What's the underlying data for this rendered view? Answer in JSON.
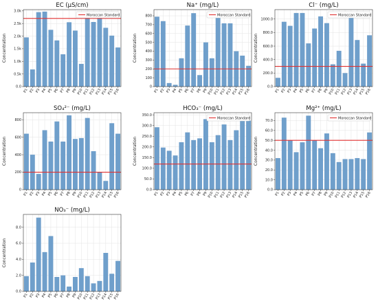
{
  "figure": {
    "bar_color": "#6f9fcb",
    "standard_color": "#e03030",
    "legend_label": "Moroccan Standard",
    "ylabel": "Concentration"
  },
  "chart_data": [
    {
      "type": "bar",
      "title": "EC (µS/cm)",
      "ylabel": "Concentration",
      "categories": [
        "P1",
        "P2",
        "P3",
        "P4",
        "P5",
        "P6",
        "P7",
        "P8",
        "P9",
        "P10",
        "P11",
        "P12",
        "P13",
        "P14",
        "P15",
        "P16"
      ],
      "values": [
        1950,
        680,
        2950,
        2970,
        2250,
        1830,
        1280,
        2550,
        2220,
        900,
        2780,
        2560,
        2800,
        2330,
        2020,
        1550
      ],
      "standard": 2700,
      "ylim": [
        0,
        3050
      ],
      "yticks": [
        0,
        500,
        1000,
        1500,
        2000,
        2500,
        3000
      ],
      "yticklabels": [
        "0.0",
        "0.5k",
        "1.0k",
        "1.5k",
        "2.0k",
        "2.5k",
        "3.0k"
      ],
      "grid": true,
      "legend": "top-right"
    },
    {
      "type": "bar",
      "title": "Na⁺ (mg/L)",
      "ylabel": "Concentration",
      "categories": [
        "P1",
        "P2",
        "P3",
        "P4",
        "P5",
        "P6",
        "P7",
        "P8",
        "P9",
        "P10",
        "P11",
        "P12",
        "P13",
        "P14",
        "P15",
        "P16"
      ],
      "values": [
        790,
        740,
        40,
        20,
        320,
        690,
        830,
        130,
        500,
        320,
        790,
        715,
        715,
        400,
        350,
        235
      ],
      "standard": 200,
      "ylim": [
        0,
        870
      ],
      "yticks": [
        0,
        100,
        200,
        300,
        400,
        500,
        600,
        700,
        800
      ],
      "yticklabels": [
        "0",
        "100",
        "200",
        "300",
        "400",
        "500",
        "600",
        "700",
        "800"
      ],
      "grid": true,
      "legend": "top-right"
    },
    {
      "type": "bar",
      "title": "Cl⁻ (mg/L)",
      "ylabel": "Concentration",
      "categories": [
        "P1",
        "P2",
        "P3",
        "P4",
        "P5",
        "P6",
        "P7",
        "P8",
        "P9",
        "P10",
        "P11",
        "P12",
        "P13",
        "P14",
        "P15",
        "P16"
      ],
      "values": [
        130,
        960,
        900,
        1090,
        1090,
        640,
        860,
        1040,
        940,
        330,
        530,
        200,
        1040,
        690,
        340,
        760
      ],
      "standard": 300,
      "ylim": [
        0,
        1140
      ],
      "yticks": [
        0,
        200,
        400,
        600,
        800,
        1000
      ],
      "yticklabels": [
        "0.0",
        "200.0",
        "400.0",
        "600.0",
        "800.0",
        "1000.0"
      ],
      "grid": true,
      "legend": "top-right"
    },
    {
      "type": "bar",
      "title": "SO₄²⁻ (mg/L)",
      "ylabel": "Concentration",
      "categories": [
        "P1",
        "P2",
        "P3",
        "P4",
        "P5",
        "P6",
        "P7",
        "P8",
        "P9",
        "P10",
        "P11",
        "P12",
        "P13",
        "P14",
        "P15",
        "P16"
      ],
      "values": [
        640,
        400,
        180,
        680,
        550,
        780,
        550,
        850,
        580,
        590,
        820,
        440,
        200,
        100,
        760,
        640
      ],
      "standard": 200,
      "ylim": [
        0,
        880
      ],
      "yticks": [
        0,
        200,
        400,
        600,
        800
      ],
      "yticklabels": [
        "0",
        "200",
        "400",
        "600",
        "800"
      ],
      "grid": true,
      "legend": "none"
    },
    {
      "type": "bar",
      "title": "HCO₃⁻ (mg/L)",
      "ylabel": "Concentration",
      "categories": [
        "P1",
        "P2",
        "P3",
        "P4",
        "P5",
        "P6",
        "P7",
        "P8",
        "P9",
        "P10",
        "P11",
        "P12",
        "P13",
        "P14",
        "P15",
        "P16"
      ],
      "values": [
        292,
        197,
        182,
        160,
        222,
        268,
        232,
        240,
        330,
        222,
        255,
        305,
        232,
        278,
        325,
        323
      ],
      "standard": 120,
      "ylim": [
        0,
        360
      ],
      "yticks": [
        0,
        50,
        100,
        150,
        200,
        250,
        300,
        350
      ],
      "yticklabels": [
        "0.0",
        "50.0",
        "100.0",
        "150.0",
        "200.0",
        "250.0",
        "300.0",
        "350.0"
      ],
      "grid": true,
      "legend": "top-right"
    },
    {
      "type": "bar",
      "title": "Mg²⁺ (mg/L)",
      "ylabel": "Concentration",
      "categories": [
        "P1",
        "P2",
        "P3",
        "P4",
        "P5",
        "P6",
        "P7",
        "P8",
        "P9",
        "P10",
        "P11",
        "P12",
        "P13",
        "P14",
        "P15",
        "P16"
      ],
      "values": [
        32,
        73,
        50,
        38,
        48,
        75,
        50,
        42,
        57,
        37,
        28,
        31,
        31,
        32,
        31,
        58
      ],
      "standard": 50,
      "ylim": [
        0,
        78
      ],
      "yticks": [
        0,
        10,
        20,
        30,
        40,
        50,
        60,
        70
      ],
      "yticklabels": [
        "0.0",
        "10.0",
        "20.0",
        "30.0",
        "40.0",
        "50.0",
        "60.0",
        "70.0"
      ],
      "grid": true,
      "legend": "top-right"
    },
    {
      "type": "bar",
      "title": "NO₃⁻ (mg/L)",
      "ylabel": "Concentration",
      "categories": [
        "P1",
        "P2",
        "P3",
        "P4",
        "P5",
        "P6",
        "P7",
        "P8",
        "P9",
        "P10",
        "P11",
        "P12",
        "P13",
        "P14",
        "P15",
        "P16"
      ],
      "values": [
        1.9,
        3.6,
        9.2,
        4.9,
        6.9,
        1.8,
        2.0,
        0.6,
        1.8,
        2.9,
        1.9,
        1.0,
        1.3,
        4.8,
        2.2,
        3.8
      ],
      "standard": null,
      "ylim": [
        0,
        9.6
      ],
      "yticks": [
        0,
        2,
        4,
        6,
        8
      ],
      "yticklabels": [
        "0.0",
        "2.0",
        "4.0",
        "6.0",
        "8.0"
      ],
      "grid": true,
      "legend": "none"
    }
  ]
}
